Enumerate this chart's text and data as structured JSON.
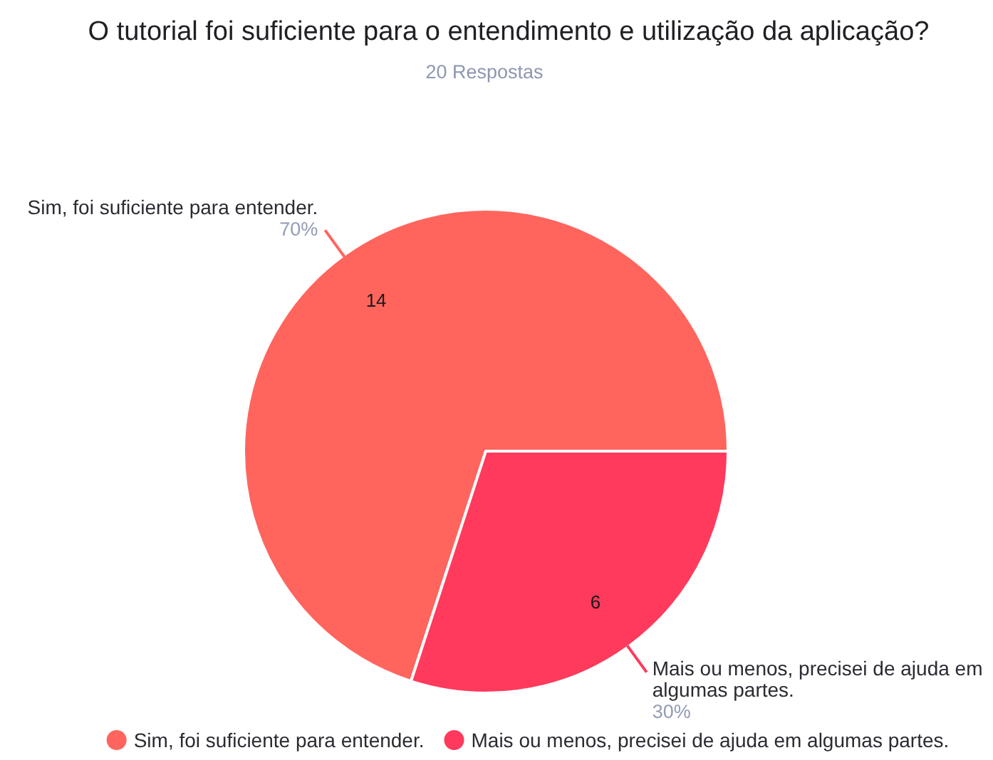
{
  "chart_data": {
    "type": "pie",
    "title": "O tutorial foi suficiente para o entendimento e utilização da aplicação?",
    "subtitle": "20 Respostas",
    "categories": [
      "Sim, foi suficiente para entender.",
      "Mais ou menos, precisei de ajuda em algumas partes."
    ],
    "values": [
      14,
      6
    ],
    "colors": [
      "#ff655d",
      "#ff3a5c"
    ],
    "data_labels": true,
    "annotations": [
      "70%",
      "30%"
    ],
    "legend": "bottom"
  }
}
